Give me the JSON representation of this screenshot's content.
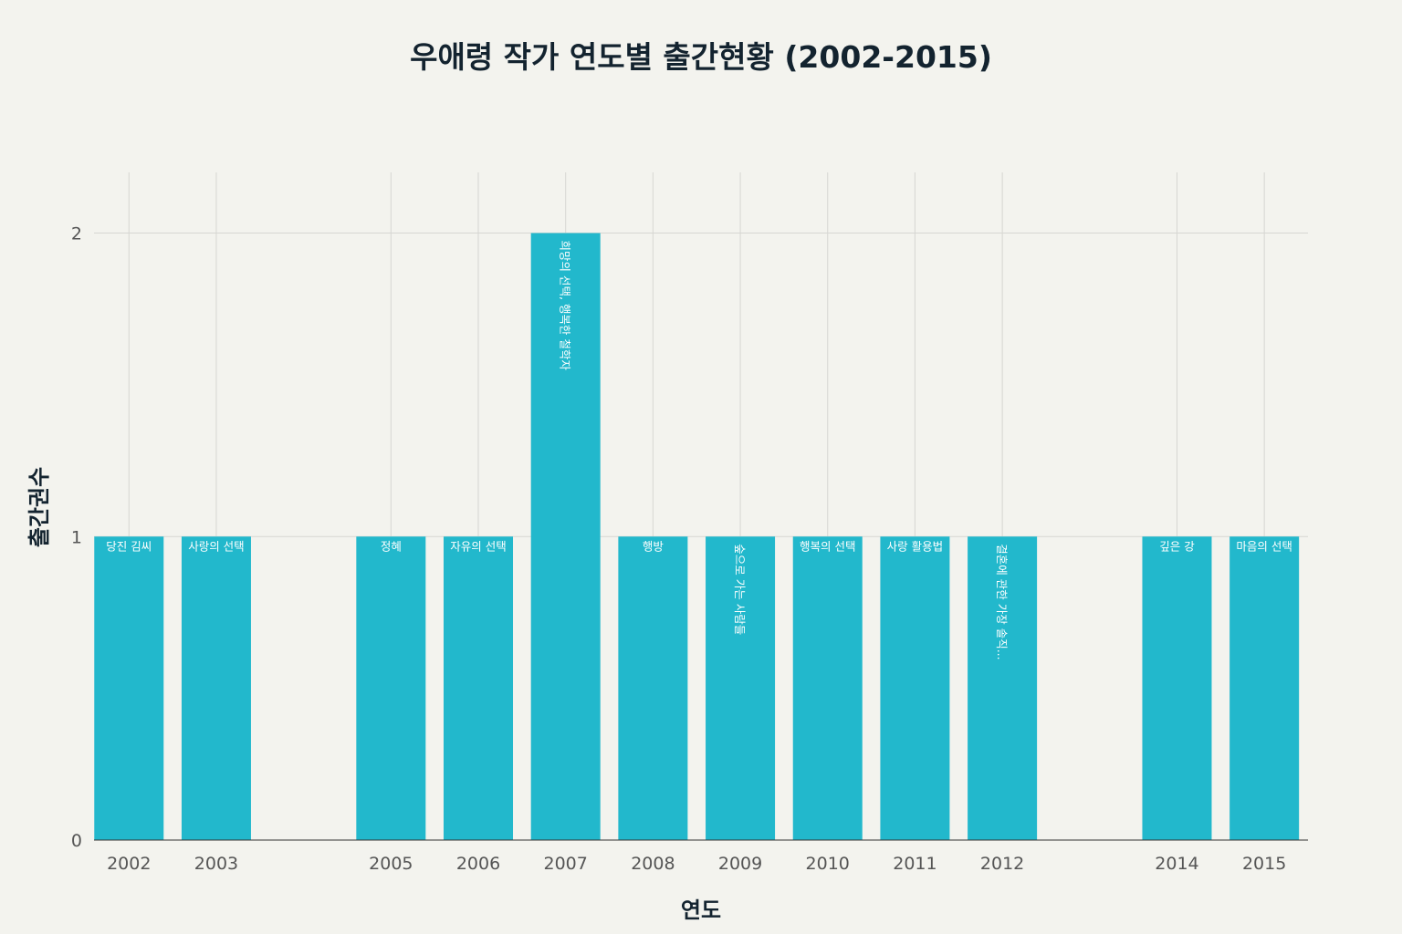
{
  "chart_data": {
    "type": "bar",
    "title": "우애령 작가 연도별 출간현황 (2002-2015)",
    "xlabel": "연도",
    "ylabel": "출간권수",
    "x_axis_range": [
      2001.6,
      2015.5
    ],
    "ylim": [
      0,
      2.2
    ],
    "yticks": [
      0,
      1,
      2
    ],
    "xticks": [
      2002,
      2003,
      2005,
      2006,
      2007,
      2008,
      2009,
      2010,
      2011,
      2012,
      2014,
      2015
    ],
    "grid": true,
    "bar_color": "#22b8cc",
    "bars": [
      {
        "year": 2002,
        "value": 1,
        "label": "당진 김씨",
        "label_orientation": "horizontal"
      },
      {
        "year": 2003,
        "value": 1,
        "label": "사랑의 선택",
        "label_orientation": "horizontal"
      },
      {
        "year": 2005,
        "value": 1,
        "label": "정혜",
        "label_orientation": "horizontal"
      },
      {
        "year": 2006,
        "value": 1,
        "label": "자유의 선택",
        "label_orientation": "horizontal"
      },
      {
        "year": 2007,
        "value": 2,
        "label": "희망의 선택, 행복한 철학자",
        "label_orientation": "vertical"
      },
      {
        "year": 2008,
        "value": 1,
        "label": "행방",
        "label_orientation": "horizontal"
      },
      {
        "year": 2009,
        "value": 1,
        "label": "숲으로 가는 사람들",
        "label_orientation": "vertical"
      },
      {
        "year": 2010,
        "value": 1,
        "label": "행복의 선택",
        "label_orientation": "horizontal"
      },
      {
        "year": 2011,
        "value": 1,
        "label": "사랑 활용법",
        "label_orientation": "horizontal"
      },
      {
        "year": 2012,
        "value": 1,
        "label": "결혼에 관한 가장 솔직...",
        "label_orientation": "vertical"
      },
      {
        "year": 2014,
        "value": 1,
        "label": "깊은 강",
        "label_orientation": "horizontal"
      },
      {
        "year": 2015,
        "value": 1,
        "label": "마음의 선택",
        "label_orientation": "horizontal"
      }
    ]
  }
}
